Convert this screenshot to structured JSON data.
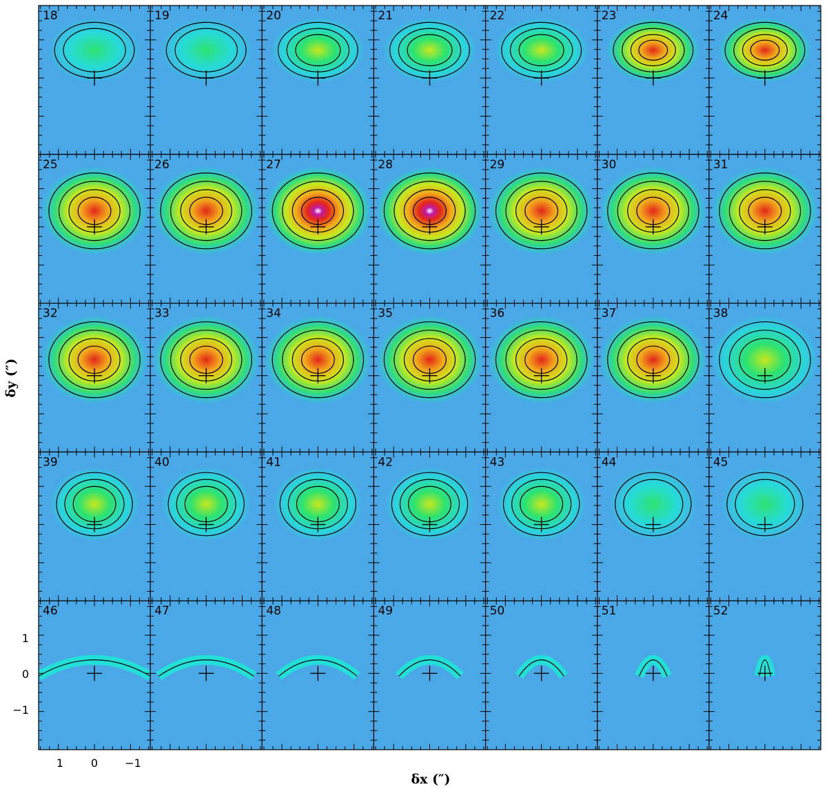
{
  "chart_data": {
    "type": "heatmap",
    "description_kind": "channel-map grid (7 x 5 panels) of intensity with contour overlays",
    "panels": [
      "18",
      "19",
      "20",
      "21",
      "22",
      "23",
      "24",
      "25",
      "26",
      "27",
      "28",
      "29",
      "30",
      "31",
      "32",
      "33",
      "34",
      "35",
      "36",
      "37",
      "38",
      "39",
      "40",
      "41",
      "42",
      "43",
      "44",
      "45",
      "46",
      "47",
      "48",
      "49",
      "50",
      "51",
      "52"
    ],
    "xlabel": "δx (″)",
    "ylabel": "δy (″)",
    "x_ticks": [
      "1",
      "0",
      "−1"
    ],
    "y_ticks": [
      "1",
      "0",
      "−1"
    ],
    "xlim": [
      1.55,
      -1.55
    ],
    "ylim": [
      -2.0,
      1.9
    ],
    "colormap": [
      "#4fa7e8",
      "#22e0d8",
      "#2de36e",
      "#c8e81e",
      "#f2a81c",
      "#e3261a",
      "#c01aa8",
      "#ffffff"
    ],
    "background_color": "#4aa8e6",
    "contour_color": "#000000",
    "marker": "cross at (0,0)"
  }
}
